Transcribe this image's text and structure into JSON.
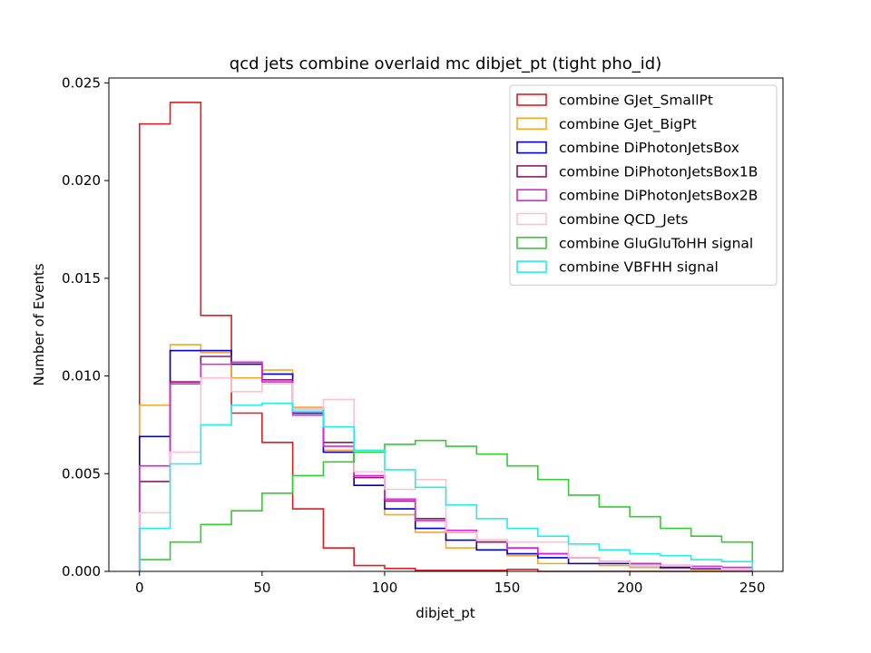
{
  "chart_data": {
    "type": "step-histogram",
    "title": "qcd jets combine overlaid mc dibjet_pt (tight pho_id)",
    "xlabel": "dibjet_pt",
    "ylabel": "Number of Events",
    "xlim": [
      -12.5,
      262.5
    ],
    "ylim": [
      0,
      0.02525
    ],
    "bin_edges": [
      0,
      12.5,
      25,
      37.5,
      50,
      62.5,
      75,
      87.5,
      100,
      112.5,
      125,
      137.5,
      150,
      162.5,
      175,
      187.5,
      200,
      212.5,
      225,
      237.5,
      250
    ],
    "x_ticks": [
      0,
      50,
      100,
      150,
      200,
      250
    ],
    "y_ticks": [
      0.0,
      0.005,
      0.01,
      0.015,
      0.02,
      0.025
    ],
    "y_tick_labels": [
      "0.000",
      "0.005",
      "0.010",
      "0.015",
      "0.020",
      "0.025"
    ],
    "legend_position": "top-right",
    "series": [
      {
        "name": "combine GJet_SmallPt",
        "color": "#e41a1c",
        "values": [
          0.0229,
          0.024,
          0.0131,
          0.0081,
          0.0066,
          0.0032,
          0.0012,
          0.0003,
          0.00015,
          5e-05,
          5e-05,
          5e-05,
          0.0001,
          0.0,
          0.0,
          0.0,
          0.0,
          0.0,
          0.0,
          0.0
        ]
      },
      {
        "name": "combine GJet_BigPt",
        "color": "#f5a623",
        "values": [
          0.0085,
          0.0116,
          0.0112,
          0.0099,
          0.0103,
          0.0084,
          0.0062,
          0.0044,
          0.0029,
          0.002,
          0.0012,
          0.0011,
          0.0008,
          0.0004,
          0.0004,
          0.0003,
          0.0002,
          0.00015,
          0.0001,
          0.0001
        ]
      },
      {
        "name": "combine DiPhotonJetsBox",
        "color": "#0000dd",
        "values": [
          0.0069,
          0.0113,
          0.0113,
          0.0106,
          0.0101,
          0.0081,
          0.0061,
          0.0044,
          0.0032,
          0.0022,
          0.0016,
          0.0011,
          0.0009,
          0.0007,
          0.0004,
          0.0004,
          0.0003,
          0.0002,
          0.00015,
          0.0001
        ]
      },
      {
        "name": "combine DiPhotonJetsBox1B",
        "color": "#8b1a6b",
        "values": [
          0.0046,
          0.0097,
          0.011,
          0.0107,
          0.0098,
          0.0083,
          0.0066,
          0.0048,
          0.0036,
          0.0027,
          0.002,
          0.0015,
          0.0012,
          0.0009,
          0.0007,
          0.0005,
          0.0004,
          0.0003,
          0.00025,
          0.0002
        ]
      },
      {
        "name": "combine DiPhotonJetsBox2B",
        "color": "#dd22dd",
        "values": [
          0.0054,
          0.0096,
          0.0106,
          0.0107,
          0.0097,
          0.008,
          0.0064,
          0.0049,
          0.0037,
          0.0026,
          0.0021,
          0.0016,
          0.0012,
          0.0009,
          0.0007,
          0.0005,
          0.0004,
          0.0003,
          0.00025,
          0.0002
        ]
      },
      {
        "name": "combine QCD_Jets",
        "color": "#ffc0d0",
        "values": [
          0.003,
          0.0061,
          0.0099,
          0.0092,
          0.0096,
          0.0083,
          0.0088,
          0.0051,
          0.0042,
          0.0047,
          0.002,
          0.0016,
          0.0015,
          0.0015,
          0.0007,
          0.0005,
          0.0003,
          0.0003,
          0.0002,
          0.0001
        ]
      },
      {
        "name": "combine GluGluToHH signal",
        "color": "#33cc33",
        "values": [
          0.0006,
          0.0015,
          0.0024,
          0.0031,
          0.004,
          0.0049,
          0.0056,
          0.0061,
          0.0065,
          0.0067,
          0.0064,
          0.006,
          0.0054,
          0.0047,
          0.0039,
          0.0033,
          0.0028,
          0.0022,
          0.0018,
          0.0015
        ]
      },
      {
        "name": "combine VBFHH signal",
        "color": "#22eeee",
        "values": [
          0.0022,
          0.0055,
          0.0075,
          0.0085,
          0.0086,
          0.0082,
          0.0074,
          0.0062,
          0.0052,
          0.0043,
          0.0034,
          0.0027,
          0.0022,
          0.0018,
          0.0014,
          0.0011,
          0.0009,
          0.0008,
          0.0006,
          0.0005
        ]
      }
    ]
  }
}
